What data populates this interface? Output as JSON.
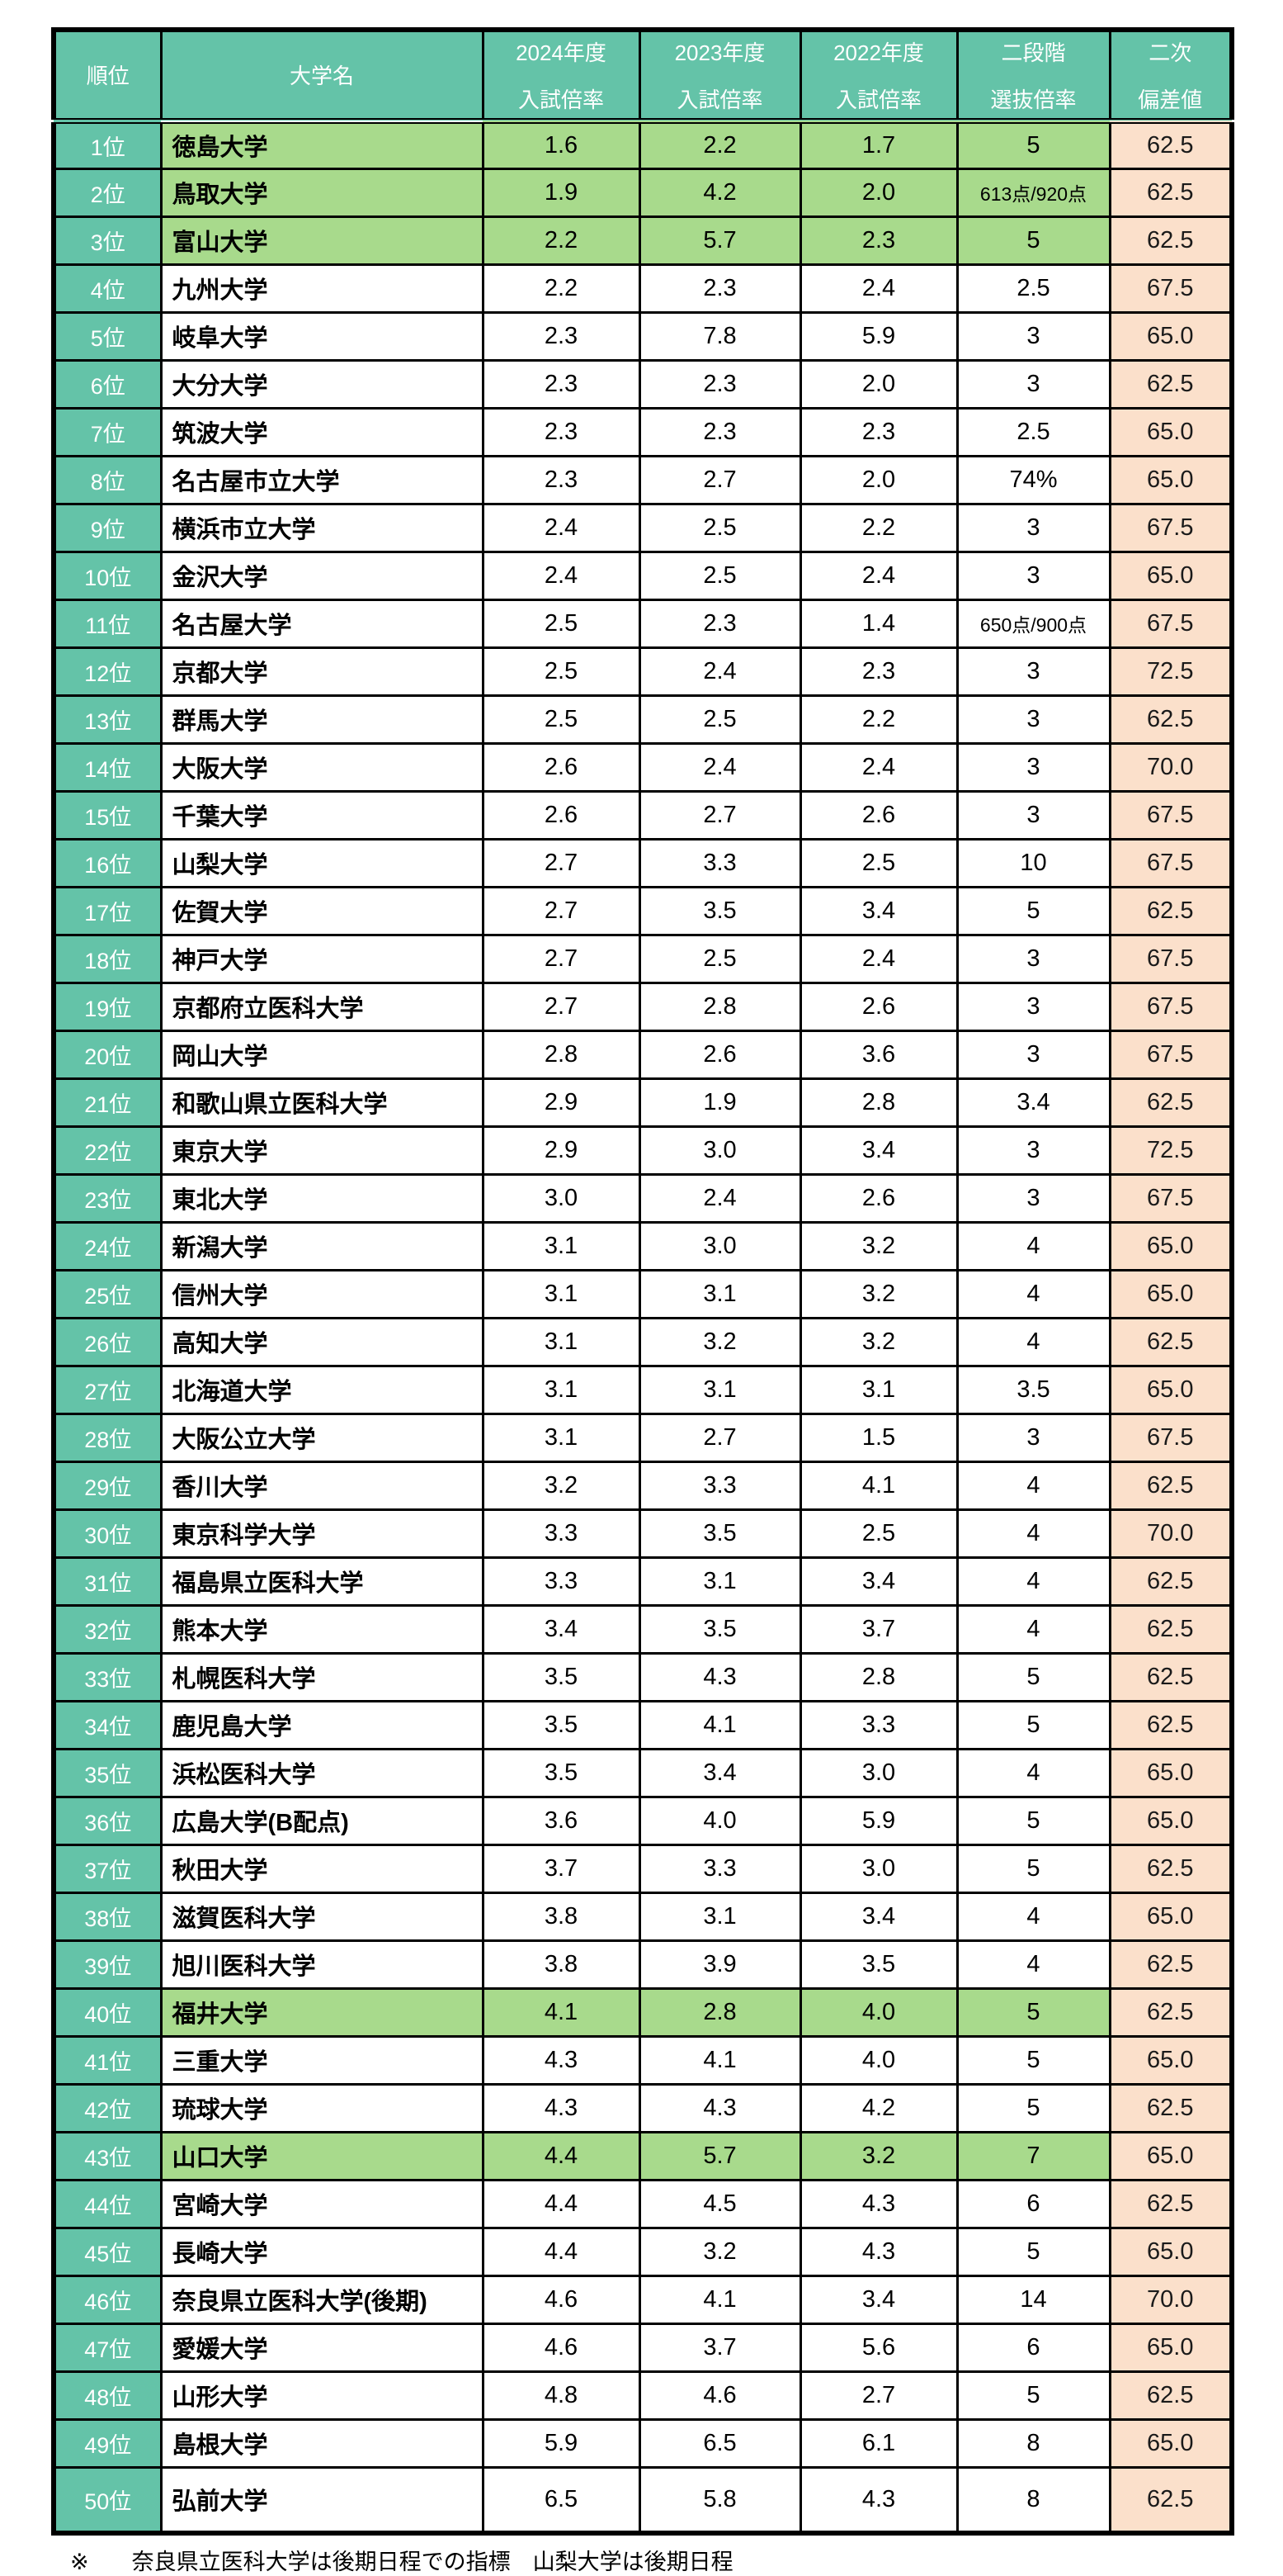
{
  "chart_data": {
    "type": "table",
    "columns": [
      {
        "id": "rank",
        "lines": [
          "順位"
        ]
      },
      {
        "id": "university",
        "lines": [
          "大学名"
        ]
      },
      {
        "id": "r2024",
        "lines": [
          "2024年度",
          "入試倍率"
        ]
      },
      {
        "id": "r2023",
        "lines": [
          "2023年度",
          "入試倍率"
        ]
      },
      {
        "id": "r2022",
        "lines": [
          "2022年度",
          "入試倍率"
        ]
      },
      {
        "id": "selection",
        "lines": [
          "二段階",
          "選抜倍率"
        ]
      },
      {
        "id": "deviation",
        "lines": [
          "二次",
          "偏差値"
        ]
      }
    ],
    "rows": [
      {
        "rank": "1位",
        "university": "徳島大学",
        "r2024": "1.6",
        "r2023": "2.2",
        "r2022": "1.7",
        "selection": "5",
        "deviation": "62.5",
        "highlighted": true
      },
      {
        "rank": "2位",
        "university": "鳥取大学",
        "r2024": "1.9",
        "r2023": "4.2",
        "r2022": "2.0",
        "selection": "613点/920点",
        "deviation": "62.5",
        "highlighted": true
      },
      {
        "rank": "3位",
        "university": "富山大学",
        "r2024": "2.2",
        "r2023": "5.7",
        "r2022": "2.3",
        "selection": "5",
        "deviation": "62.5",
        "highlighted": true
      },
      {
        "rank": "4位",
        "university": "九州大学",
        "r2024": "2.2",
        "r2023": "2.3",
        "r2022": "2.4",
        "selection": "2.5",
        "deviation": "67.5",
        "highlighted": false
      },
      {
        "rank": "5位",
        "university": "岐阜大学",
        "r2024": "2.3",
        "r2023": "7.8",
        "r2022": "5.9",
        "selection": "3",
        "deviation": "65.0",
        "highlighted": false
      },
      {
        "rank": "6位",
        "university": "大分大学",
        "r2024": "2.3",
        "r2023": "2.3",
        "r2022": "2.0",
        "selection": "3",
        "deviation": "62.5",
        "highlighted": false
      },
      {
        "rank": "7位",
        "university": "筑波大学",
        "r2024": "2.3",
        "r2023": "2.3",
        "r2022": "2.3",
        "selection": "2.5",
        "deviation": "65.0",
        "highlighted": false
      },
      {
        "rank": "8位",
        "university": "名古屋市立大学",
        "r2024": "2.3",
        "r2023": "2.7",
        "r2022": "2.0",
        "selection": "74%",
        "deviation": "65.0",
        "highlighted": false
      },
      {
        "rank": "9位",
        "university": "横浜市立大学",
        "r2024": "2.4",
        "r2023": "2.5",
        "r2022": "2.2",
        "selection": "3",
        "deviation": "67.5",
        "highlighted": false
      },
      {
        "rank": "10位",
        "university": "金沢大学",
        "r2024": "2.4",
        "r2023": "2.5",
        "r2022": "2.4",
        "selection": "3",
        "deviation": "65.0",
        "highlighted": false
      },
      {
        "rank": "11位",
        "university": "名古屋大学",
        "r2024": "2.5",
        "r2023": "2.3",
        "r2022": "1.4",
        "selection": "650点/900点",
        "deviation": "67.5",
        "highlighted": false
      },
      {
        "rank": "12位",
        "university": "京都大学",
        "r2024": "2.5",
        "r2023": "2.4",
        "r2022": "2.3",
        "selection": "3",
        "deviation": "72.5",
        "highlighted": false
      },
      {
        "rank": "13位",
        "university": "群馬大学",
        "r2024": "2.5",
        "r2023": "2.5",
        "r2022": "2.2",
        "selection": "3",
        "deviation": "62.5",
        "highlighted": false
      },
      {
        "rank": "14位",
        "university": "大阪大学",
        "r2024": "2.6",
        "r2023": "2.4",
        "r2022": "2.4",
        "selection": "3",
        "deviation": "70.0",
        "highlighted": false
      },
      {
        "rank": "15位",
        "university": "千葉大学",
        "r2024": "2.6",
        "r2023": "2.7",
        "r2022": "2.6",
        "selection": "3",
        "deviation": "67.5",
        "highlighted": false
      },
      {
        "rank": "16位",
        "university": "山梨大学",
        "r2024": "2.7",
        "r2023": "3.3",
        "r2022": "2.5",
        "selection": "10",
        "deviation": "67.5",
        "highlighted": false
      },
      {
        "rank": "17位",
        "university": "佐賀大学",
        "r2024": "2.7",
        "r2023": "3.5",
        "r2022": "3.4",
        "selection": "5",
        "deviation": "62.5",
        "highlighted": false
      },
      {
        "rank": "18位",
        "university": "神戸大学",
        "r2024": "2.7",
        "r2023": "2.5",
        "r2022": "2.4",
        "selection": "3",
        "deviation": "67.5",
        "highlighted": false
      },
      {
        "rank": "19位",
        "university": "京都府立医科大学",
        "r2024": "2.7",
        "r2023": "2.8",
        "r2022": "2.6",
        "selection": "3",
        "deviation": "67.5",
        "highlighted": false
      },
      {
        "rank": "20位",
        "university": "岡山大学",
        "r2024": "2.8",
        "r2023": "2.6",
        "r2022": "3.6",
        "selection": "3",
        "deviation": "67.5",
        "highlighted": false
      },
      {
        "rank": "21位",
        "university": "和歌山県立医科大学",
        "r2024": "2.9",
        "r2023": "1.9",
        "r2022": "2.8",
        "selection": "3.4",
        "deviation": "62.5",
        "highlighted": false
      },
      {
        "rank": "22位",
        "university": "東京大学",
        "r2024": "2.9",
        "r2023": "3.0",
        "r2022": "3.4",
        "selection": "3",
        "deviation": "72.5",
        "highlighted": false
      },
      {
        "rank": "23位",
        "university": "東北大学",
        "r2024": "3.0",
        "r2023": "2.4",
        "r2022": "2.6",
        "selection": "3",
        "deviation": "67.5",
        "highlighted": false
      },
      {
        "rank": "24位",
        "university": "新潟大学",
        "r2024": "3.1",
        "r2023": "3.0",
        "r2022": "3.2",
        "selection": "4",
        "deviation": "65.0",
        "highlighted": false
      },
      {
        "rank": "25位",
        "university": "信州大学",
        "r2024": "3.1",
        "r2023": "3.1",
        "r2022": "3.2",
        "selection": "4",
        "deviation": "65.0",
        "highlighted": false
      },
      {
        "rank": "26位",
        "university": "高知大学",
        "r2024": "3.1",
        "r2023": "3.2",
        "r2022": "3.2",
        "selection": "4",
        "deviation": "62.5",
        "highlighted": false
      },
      {
        "rank": "27位",
        "university": "北海道大学",
        "r2024": "3.1",
        "r2023": "3.1",
        "r2022": "3.1",
        "selection": "3.5",
        "deviation": "65.0",
        "highlighted": false
      },
      {
        "rank": "28位",
        "university": "大阪公立大学",
        "r2024": "3.1",
        "r2023": "2.7",
        "r2022": "1.5",
        "selection": "3",
        "deviation": "67.5",
        "highlighted": false
      },
      {
        "rank": "29位",
        "university": "香川大学",
        "r2024": "3.2",
        "r2023": "3.3",
        "r2022": "4.1",
        "selection": "4",
        "deviation": "62.5",
        "highlighted": false
      },
      {
        "rank": "30位",
        "university": "東京科学大学",
        "r2024": "3.3",
        "r2023": "3.5",
        "r2022": "2.5",
        "selection": "4",
        "deviation": "70.0",
        "highlighted": false
      },
      {
        "rank": "31位",
        "university": "福島県立医科大学",
        "r2024": "3.3",
        "r2023": "3.1",
        "r2022": "3.4",
        "selection": "4",
        "deviation": "62.5",
        "highlighted": false
      },
      {
        "rank": "32位",
        "university": "熊本大学",
        "r2024": "3.4",
        "r2023": "3.5",
        "r2022": "3.7",
        "selection": "4",
        "deviation": "62.5",
        "highlighted": false
      },
      {
        "rank": "33位",
        "university": "札幌医科大学",
        "r2024": "3.5",
        "r2023": "4.3",
        "r2022": "2.8",
        "selection": "5",
        "deviation": "62.5",
        "highlighted": false
      },
      {
        "rank": "34位",
        "university": "鹿児島大学",
        "r2024": "3.5",
        "r2023": "4.1",
        "r2022": "3.3",
        "selection": "5",
        "deviation": "62.5",
        "highlighted": false
      },
      {
        "rank": "35位",
        "university": "浜松医科大学",
        "r2024": "3.5",
        "r2023": "3.4",
        "r2022": "3.0",
        "selection": "4",
        "deviation": "65.0",
        "highlighted": false
      },
      {
        "rank": "36位",
        "university": "広島大学(B配点)",
        "r2024": "3.6",
        "r2023": "4.0",
        "r2022": "5.9",
        "selection": "5",
        "deviation": "65.0",
        "highlighted": false
      },
      {
        "rank": "37位",
        "university": "秋田大学",
        "r2024": "3.7",
        "r2023": "3.3",
        "r2022": "3.0",
        "selection": "5",
        "deviation": "62.5",
        "highlighted": false
      },
      {
        "rank": "38位",
        "university": "滋賀医科大学",
        "r2024": "3.8",
        "r2023": "3.1",
        "r2022": "3.4",
        "selection": "4",
        "deviation": "65.0",
        "highlighted": false
      },
      {
        "rank": "39位",
        "university": "旭川医科大学",
        "r2024": "3.8",
        "r2023": "3.9",
        "r2022": "3.5",
        "selection": "4",
        "deviation": "62.5",
        "highlighted": false
      },
      {
        "rank": "40位",
        "university": "福井大学",
        "r2024": "4.1",
        "r2023": "2.8",
        "r2022": "4.0",
        "selection": "5",
        "deviation": "62.5",
        "highlighted": true
      },
      {
        "rank": "41位",
        "university": "三重大学",
        "r2024": "4.3",
        "r2023": "4.1",
        "r2022": "4.0",
        "selection": "5",
        "deviation": "65.0",
        "highlighted": false
      },
      {
        "rank": "42位",
        "university": "琉球大学",
        "r2024": "4.3",
        "r2023": "4.3",
        "r2022": "4.2",
        "selection": "5",
        "deviation": "62.5",
        "highlighted": false
      },
      {
        "rank": "43位",
        "university": "山口大学",
        "r2024": "4.4",
        "r2023": "5.7",
        "r2022": "3.2",
        "selection": "7",
        "deviation": "65.0",
        "highlighted": true
      },
      {
        "rank": "44位",
        "university": "宮崎大学",
        "r2024": "4.4",
        "r2023": "4.5",
        "r2022": "4.3",
        "selection": "6",
        "deviation": "62.5",
        "highlighted": false
      },
      {
        "rank": "45位",
        "university": "長崎大学",
        "r2024": "4.4",
        "r2023": "3.2",
        "r2022": "4.3",
        "selection": "5",
        "deviation": "65.0",
        "highlighted": false
      },
      {
        "rank": "46位",
        "university": "奈良県立医科大学(後期)",
        "r2024": "4.6",
        "r2023": "4.1",
        "r2022": "3.4",
        "selection": "14",
        "deviation": "70.0",
        "highlighted": false
      },
      {
        "rank": "47位",
        "university": "愛媛大学",
        "r2024": "4.6",
        "r2023": "3.7",
        "r2022": "5.6",
        "selection": "6",
        "deviation": "65.0",
        "highlighted": false
      },
      {
        "rank": "48位",
        "university": "山形大学",
        "r2024": "4.8",
        "r2023": "4.6",
        "r2022": "2.7",
        "selection": "5",
        "deviation": "62.5",
        "highlighted": false
      },
      {
        "rank": "49位",
        "university": "島根大学",
        "r2024": "5.9",
        "r2023": "6.5",
        "r2022": "6.1",
        "selection": "8",
        "deviation": "65.0",
        "highlighted": false
      },
      {
        "rank": "50位",
        "university": "弘前大学",
        "r2024": "6.5",
        "r2023": "5.8",
        "r2022": "4.3",
        "selection": "8",
        "deviation": "62.5",
        "highlighted": false
      }
    ]
  },
  "footnote": {
    "marker": "※",
    "text": "奈良県立医科大学は後期日程での指標　山梨大学は後期日程"
  },
  "colors": {
    "header_teal": "#64c3a8",
    "row_highlight_green": "#a8da8c",
    "deviation_peach": "#fbe0cb",
    "border_black": "#000000",
    "header_text": "#ffffff"
  }
}
